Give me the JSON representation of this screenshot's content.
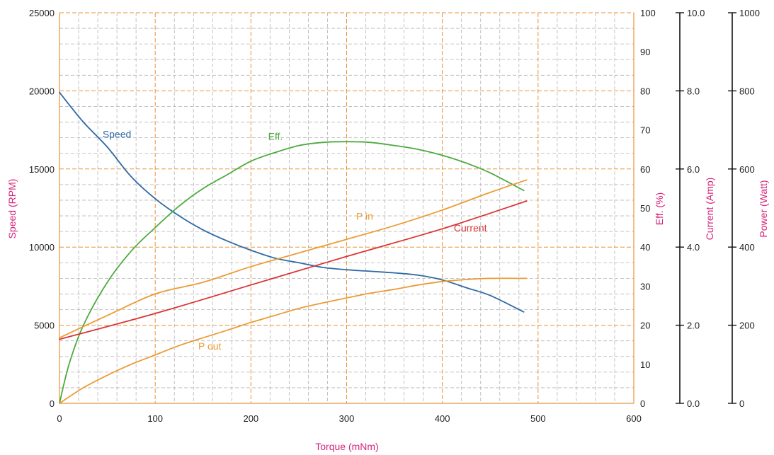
{
  "chart_data": {
    "type": "line",
    "xlabel": "Torque (mNm)",
    "xlim": [
      0,
      600
    ],
    "x_ticks": [
      "0",
      "100",
      "200",
      "300",
      "400",
      "500",
      "600"
    ],
    "axes": {
      "speed": {
        "label": "Speed (RPM)",
        "range": [
          0,
          25000
        ],
        "ticks": [
          "0",
          "5000",
          "10000",
          "15000",
          "20000",
          "25000"
        ]
      },
      "efficiency": {
        "label": "Eff. (%)",
        "range": [
          0,
          100
        ],
        "ticks": [
          "0",
          "10",
          "20",
          "30",
          "40",
          "50",
          "60",
          "70",
          "80",
          "90",
          "100"
        ]
      },
      "current": {
        "label": "Current (Amp)",
        "range": [
          0,
          10
        ],
        "ticks": [
          "0.0",
          "2.0",
          "4.0",
          "6.0",
          "8.0",
          "10.0"
        ]
      },
      "power": {
        "label": "Power (Watt)",
        "range": [
          0,
          1000
        ],
        "ticks": [
          "0",
          "200",
          "400",
          "600",
          "800",
          "1000"
        ]
      }
    },
    "grid": true,
    "colors": {
      "grid_major": "#e8923a",
      "grid_minor": "#b4b4b4",
      "axis_title": "#d6247c"
    },
    "series": [
      {
        "name": "Speed",
        "axis": "speed",
        "color": "#2e6aa6",
        "x": [
          0,
          25,
          50,
          75,
          100,
          125,
          150,
          175,
          200,
          225,
          250,
          275,
          300,
          325,
          350,
          375,
          400,
          425,
          450,
          485
        ],
        "y": [
          19900,
          18000,
          16400,
          14500,
          13100,
          12000,
          11100,
          10400,
          9800,
          9300,
          9000,
          8700,
          8550,
          8450,
          8350,
          8200,
          7900,
          7400,
          6900,
          5850
        ]
      },
      {
        "name": "Eff.",
        "axis": "efficiency",
        "color": "#4caa3e",
        "x": [
          0,
          10,
          25,
          50,
          75,
          100,
          125,
          150,
          175,
          200,
          225,
          250,
          275,
          300,
          325,
          350,
          375,
          400,
          425,
          450,
          485
        ],
        "y": [
          0,
          10,
          20,
          31,
          39,
          45,
          50.5,
          55,
          58.5,
          62,
          64.2,
          66,
          66.8,
          67,
          66.8,
          66,
          65,
          63.5,
          61.5,
          59,
          54.5
        ]
      },
      {
        "name": "P in",
        "axis": "power",
        "color": "#ec9b35",
        "x": [
          0,
          50,
          100,
          150,
          200,
          250,
          300,
          350,
          400,
          450,
          488
        ],
        "y": [
          168,
          225,
          280,
          310,
          350,
          385,
          420,
          455,
          495,
          540,
          572
        ]
      },
      {
        "name": "Current",
        "axis": "current",
        "color": "#d93434",
        "x": [
          0,
          100,
          200,
          300,
          400,
          488
        ],
        "y": [
          1.64,
          2.3,
          3.03,
          3.76,
          4.47,
          5.18
        ]
      },
      {
        "name": "P out",
        "axis": "power",
        "color": "#ec9b35",
        "x": [
          0,
          25,
          50,
          75,
          100,
          125,
          150,
          175,
          200,
          225,
          250,
          275,
          300,
          325,
          350,
          375,
          400,
          425,
          450,
          488
        ],
        "y": [
          0,
          40,
          72,
          100,
          124,
          148,
          168,
          187,
          207,
          225,
          243,
          257,
          270,
          282,
          292,
          303,
          312,
          317,
          320,
          320
        ]
      }
    ],
    "series_labels": [
      {
        "text": "Speed",
        "axis": "speed",
        "x": 45,
        "y": 17000
      },
      {
        "text": "Eff.",
        "axis": "efficiency",
        "x": 218,
        "y": 67.5
      },
      {
        "text": "P in",
        "axis": "power",
        "x": 310,
        "y": 470
      },
      {
        "text": "Current",
        "axis": "current",
        "x": 412,
        "y": 4.4
      },
      {
        "text": "P out",
        "axis": "power",
        "x": 145,
        "y": 138
      }
    ]
  }
}
